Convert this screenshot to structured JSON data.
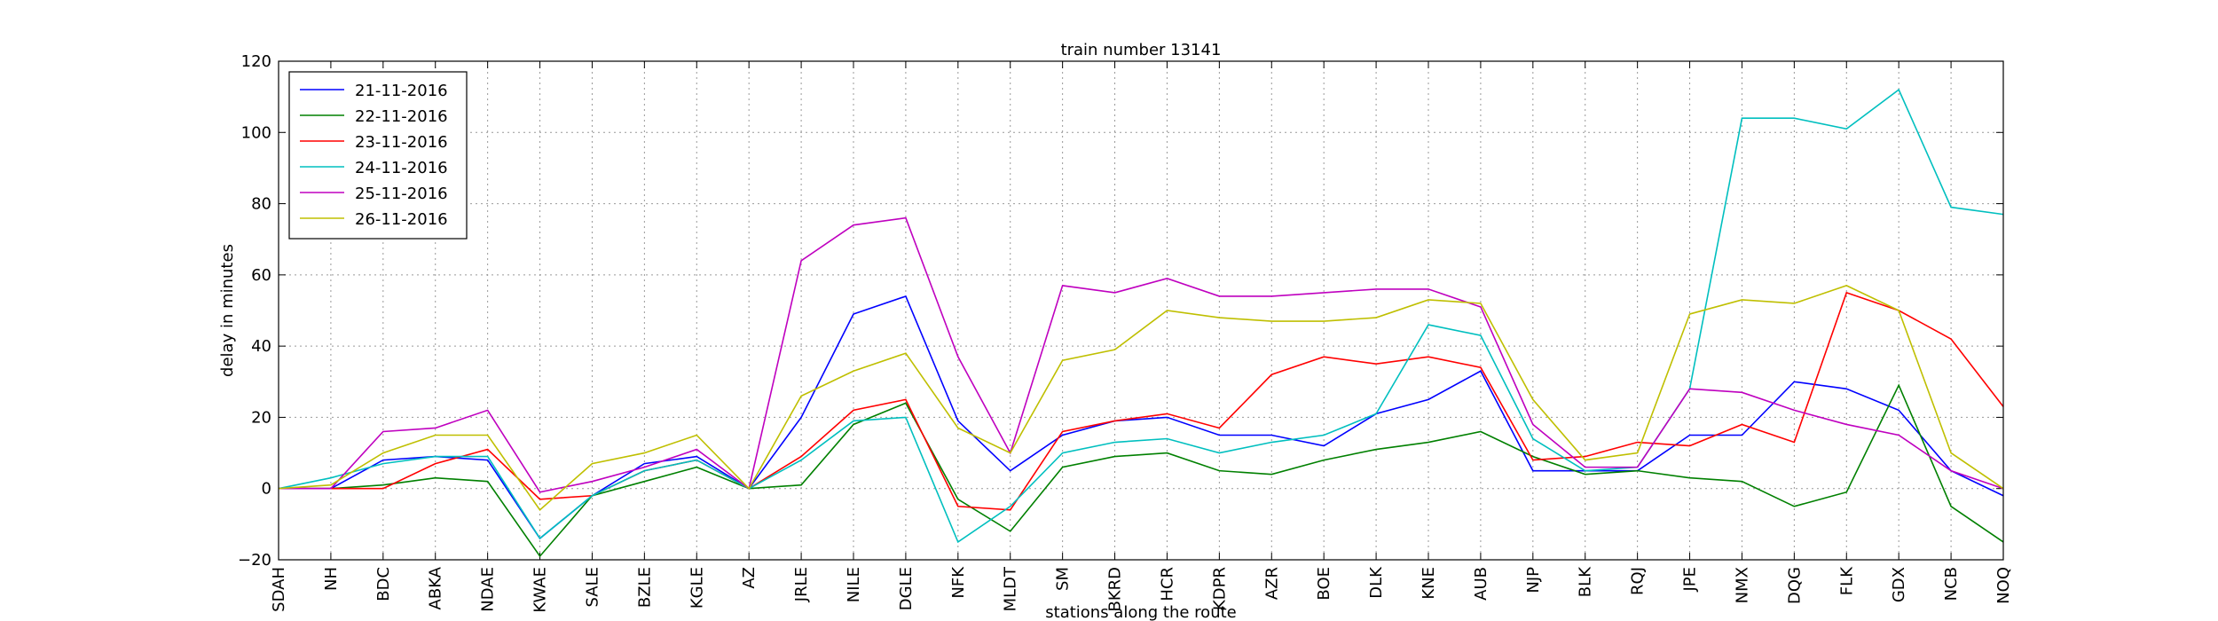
{
  "chart_data": {
    "type": "line",
    "title": "train number 13141",
    "x_label": "stations along the route",
    "y_label": "delay in minutes",
    "categories": [
      "SDAH",
      "NH",
      "BDC",
      "ABKA",
      "NDAE",
      "KWAE",
      "SALE",
      "BZLE",
      "KGLE",
      "AZ",
      "JRLE",
      "NILE",
      "DGLE",
      "NFK",
      "MLDT",
      "SM",
      "BKRD",
      "HCR",
      "KDPR",
      "AZR",
      "BOE",
      "DLK",
      "KNE",
      "AUB",
      "NJP",
      "BLK",
      "RQJ",
      "JPE",
      "NMX",
      "DQG",
      "FLK",
      "GDX",
      "NCB",
      "NOQ"
    ],
    "series": [
      {
        "name": "21-11-2016",
        "color": "#0000ff",
        "values": [
          0,
          0,
          8,
          9,
          8,
          -14,
          -2,
          7,
          9,
          0,
          20,
          49,
          54,
          19,
          5,
          15,
          19,
          20,
          15,
          15,
          12,
          21,
          25,
          33,
          5,
          5,
          5,
          15,
          15,
          30,
          28,
          22,
          5,
          -2
        ]
      },
      {
        "name": "22-11-2016",
        "color": "#008000",
        "values": [
          0,
          0,
          1,
          3,
          2,
          -19,
          -2,
          2,
          6,
          0,
          1,
          18,
          24,
          -3,
          -12,
          6,
          9,
          10,
          5,
          4,
          8,
          11,
          13,
          16,
          9,
          4,
          5,
          3,
          2,
          -5,
          -1,
          29,
          -5,
          -15
        ]
      },
      {
        "name": "23-11-2016",
        "color": "#ff0000",
        "values": [
          0,
          0,
          0,
          7,
          11,
          -3,
          -2,
          5,
          8,
          0,
          9,
          22,
          25,
          -5,
          -6,
          16,
          19,
          21,
          17,
          32,
          37,
          35,
          37,
          34,
          8,
          9,
          13,
          12,
          18,
          13,
          55,
          50,
          42,
          23
        ]
      },
      {
        "name": "24-11-2016",
        "color": "#00bfbf",
        "values": [
          0,
          3,
          7,
          9,
          9,
          -14,
          -2,
          5,
          8,
          0,
          8,
          19,
          20,
          -15,
          -5,
          10,
          13,
          14,
          10,
          13,
          15,
          21,
          46,
          43,
          14,
          5,
          6,
          28,
          104,
          104,
          101,
          112,
          79,
          77
        ]
      },
      {
        "name": "25-11-2016",
        "color": "#bf00bf",
        "values": [
          0,
          0,
          16,
          17,
          22,
          -1,
          2,
          6,
          11,
          0,
          64,
          74,
          76,
          37,
          10,
          57,
          55,
          59,
          54,
          54,
          55,
          56,
          56,
          51,
          18,
          6,
          6,
          28,
          27,
          22,
          18,
          15,
          5,
          0
        ]
      },
      {
        "name": "26-11-2016",
        "color": "#bfbf00",
        "values": [
          0,
          1,
          10,
          15,
          15,
          -6,
          7,
          10,
          15,
          0,
          26,
          33,
          38,
          17,
          10,
          36,
          39,
          50,
          48,
          47,
          47,
          48,
          53,
          52,
          25,
          8,
          10,
          49,
          53,
          52,
          57,
          50,
          10,
          0
        ]
      }
    ],
    "ylim": [
      -20,
      120
    ],
    "yticks": [
      {
        "value": -20,
        "label": "−20"
      },
      0,
      20,
      40,
      60,
      80,
      100,
      120
    ],
    "grid": true,
    "legend": "upper left"
  }
}
